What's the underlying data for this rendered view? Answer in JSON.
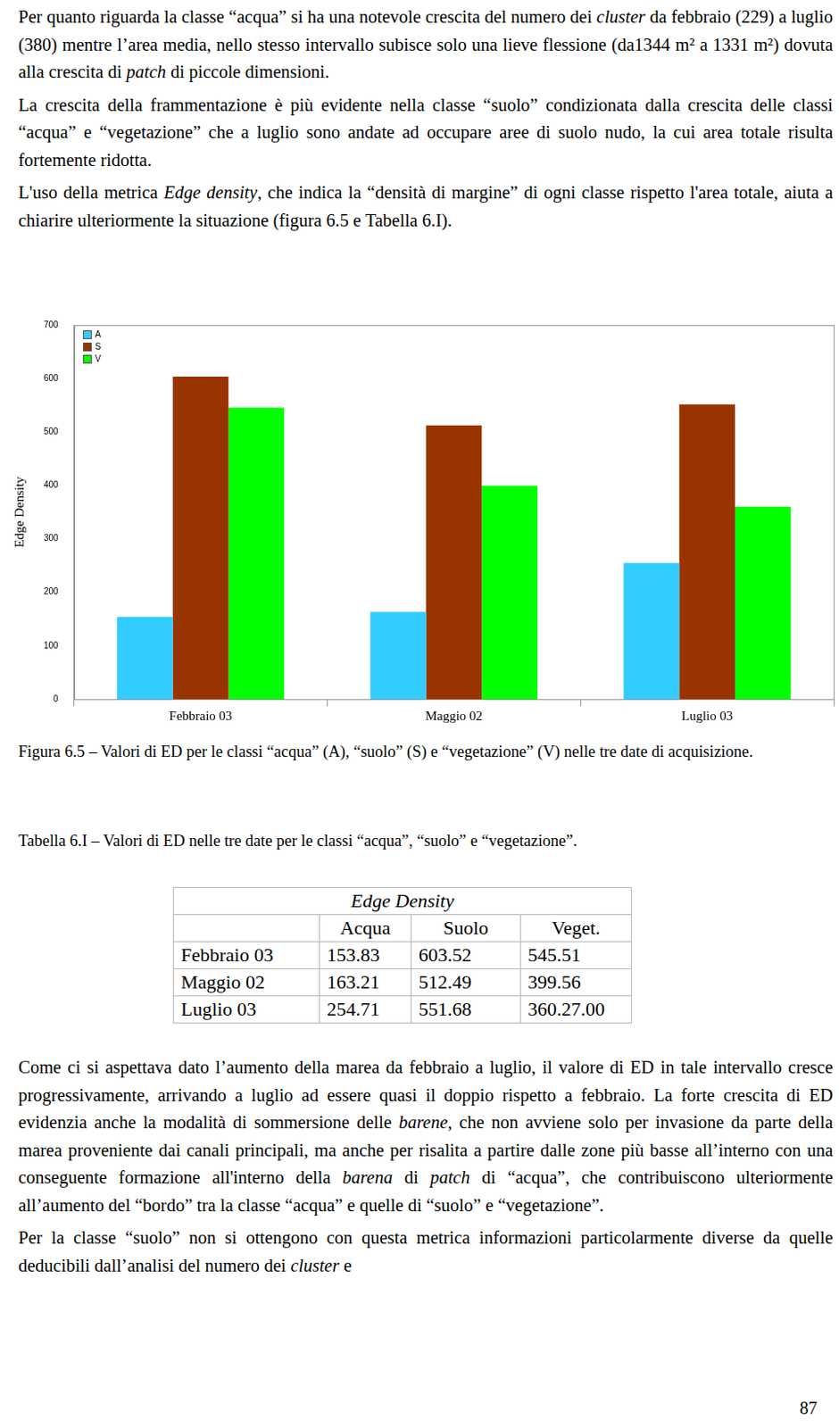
{
  "paragraphs_top": [
    [
      {
        "text": "Per quanto riguarda la classe “acqua” si ha una notevole crescita del numero dei "
      },
      {
        "text": "cluster",
        "italic": true
      },
      {
        "text": " da febbraio (229) a luglio (380) mentre l’area media, nello stesso intervallo subisce solo una lieve flessione (da1344 m² a 1331 m²) dovuta alla crescita di "
      },
      {
        "text": "patch",
        "italic": true
      },
      {
        "text": " di piccole dimensioni."
      }
    ],
    [
      {
        "text": "La crescita della frammentazione è più evidente nella classe “suolo” condizionata dalla crescita delle classi “acqua” e “vegetazione” che a luglio sono andate ad occupare aree di suolo nudo, la cui area totale risulta fortemente ridotta."
      }
    ],
    [
      {
        "text": "L'uso della metrica "
      },
      {
        "text": "Edge density",
        "italic": true
      },
      {
        "text": ", che indica la “densità di margine” di ogni classe rispetto l'area totale, aiuta a chiarire ulteriormente la situazione (figura 6.5 e Tabella 6.I)."
      }
    ]
  ],
  "chart_data": {
    "type": "bar",
    "y_label": "Edge Density",
    "categories": [
      "Febbraio 03",
      "Maggio 02",
      "Luglio 03"
    ],
    "series": [
      {
        "name": "A",
        "color": "#33ccff",
        "values": [
          153.83,
          163.21,
          254.71
        ]
      },
      {
        "name": "S",
        "color": "#993300",
        "values": [
          603.52,
          512.49,
          551.68
        ]
      },
      {
        "name": "V",
        "color": "#00ff00",
        "values": [
          545.51,
          399.56,
          360.27
        ]
      }
    ],
    "ylim": [
      0,
      700
    ],
    "yticks": [
      0,
      100,
      200,
      300,
      400,
      500,
      600,
      700
    ],
    "grid": false,
    "legend": "top-left"
  },
  "figure_caption": "Figura 6.5 – Valori di ED per le classi “acqua” (A), “suolo” (S) e “vegetazione” (V) nelle tre date di acquisizione.",
  "table_caption": "Tabella 6.I – Valori di ED nelle tre date per le classi “acqua”, “suolo” e “vegetazione”.",
  "table": {
    "title": "Edge Density",
    "columns": [
      "Acqua",
      "Suolo",
      "Veget."
    ],
    "rows": [
      {
        "label": "Febbraio 03",
        "cells": [
          "153.83",
          "603.52",
          "545.51"
        ]
      },
      {
        "label": "Maggio 02",
        "cells": [
          "163.21",
          "512.49",
          "399.56"
        ]
      },
      {
        "label": "Luglio 03",
        "cells": [
          "254.71",
          "551.68",
          "360.27.00"
        ]
      }
    ]
  },
  "paragraphs_bottom": [
    [
      {
        "text": "Come ci si aspettava dato l’aumento della marea da febbraio a luglio, il valore di ED in tale intervallo cresce progressivamente, arrivando a luglio ad essere quasi il doppio rispetto a febbraio. La forte crescita di ED evidenzia anche la modalità di sommersione delle "
      },
      {
        "text": "barene",
        "italic": true
      },
      {
        "text": ", che non avviene solo per invasione da parte della marea proveniente dai canali principali, ma anche per risalita a partire dalle zone più basse all’interno con una conseguente formazione all'interno della "
      },
      {
        "text": "barena",
        "italic": true
      },
      {
        "text": " di "
      },
      {
        "text": "patch",
        "italic": true
      },
      {
        "text": " di “acqua”, che contribuiscono ulteriormente all’aumento del “bordo” tra la classe “acqua” e quelle di “suolo” e “vegetazione”."
      }
    ],
    [
      {
        "text": "Per la classe “suolo” non si ottengono con questa metrica informazioni particolarmente diverse da quelle deducibili dall’analisi del numero dei "
      },
      {
        "text": "cluster",
        "italic": true
      },
      {
        "text": " e"
      }
    ]
  ],
  "page_number": "87"
}
